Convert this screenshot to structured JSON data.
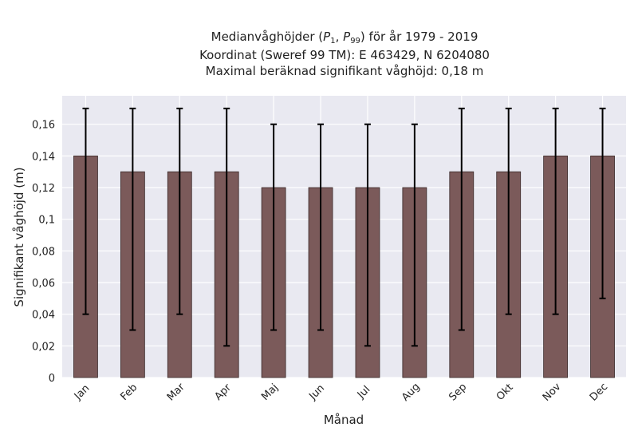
{
  "chart_data": {
    "type": "bar",
    "title": {
      "line1_prefix": "Medianvåghöjder (",
      "p1_base": "P",
      "p1_sub": "1",
      "separator": ", ",
      "p99_base": "P",
      "p99_sub": "99",
      "line1_suffix": ") för år 1979 - 2019",
      "line2": "Koordinat (Sweref 99 TM): E 463429, N 6204080",
      "line3": "Maximal beräknad signifikant våghöjd: 0,18 m"
    },
    "xlabel": "Månad",
    "ylabel": "Signifikant våghöjd (m)",
    "categories": [
      "Jan",
      "Feb",
      "Mar",
      "Apr",
      "Maj",
      "Jun",
      "Jul",
      "Aug",
      "Sep",
      "Okt",
      "Nov",
      "Dec"
    ],
    "values": [
      0.14,
      0.13,
      0.13,
      0.13,
      0.12,
      0.12,
      0.12,
      0.12,
      0.13,
      0.13,
      0.14,
      0.14
    ],
    "error_low": [
      0.04,
      0.03,
      0.04,
      0.02,
      0.03,
      0.03,
      0.02,
      0.02,
      0.03,
      0.04,
      0.04,
      0.05
    ],
    "error_high": [
      0.17,
      0.17,
      0.17,
      0.17,
      0.16,
      0.16,
      0.16,
      0.16,
      0.17,
      0.17,
      0.17,
      0.17
    ],
    "ylim": [
      0,
      0.178
    ],
    "yticks": [
      0,
      0.02,
      0.04,
      0.06,
      0.08,
      0.1,
      0.12,
      0.14,
      0.16
    ],
    "ytick_labels": [
      "0",
      "0,02",
      "0,04",
      "0,06",
      "0,08",
      "0,1",
      "0,12",
      "0,14",
      "0,16"
    ],
    "grid": true,
    "colors": {
      "bar": "#7b5a5a",
      "bar_edge": "#3a2a2a",
      "error_bar": "#000000",
      "plot_bg": "#e9e9f1",
      "grid": "#ffffff"
    }
  }
}
